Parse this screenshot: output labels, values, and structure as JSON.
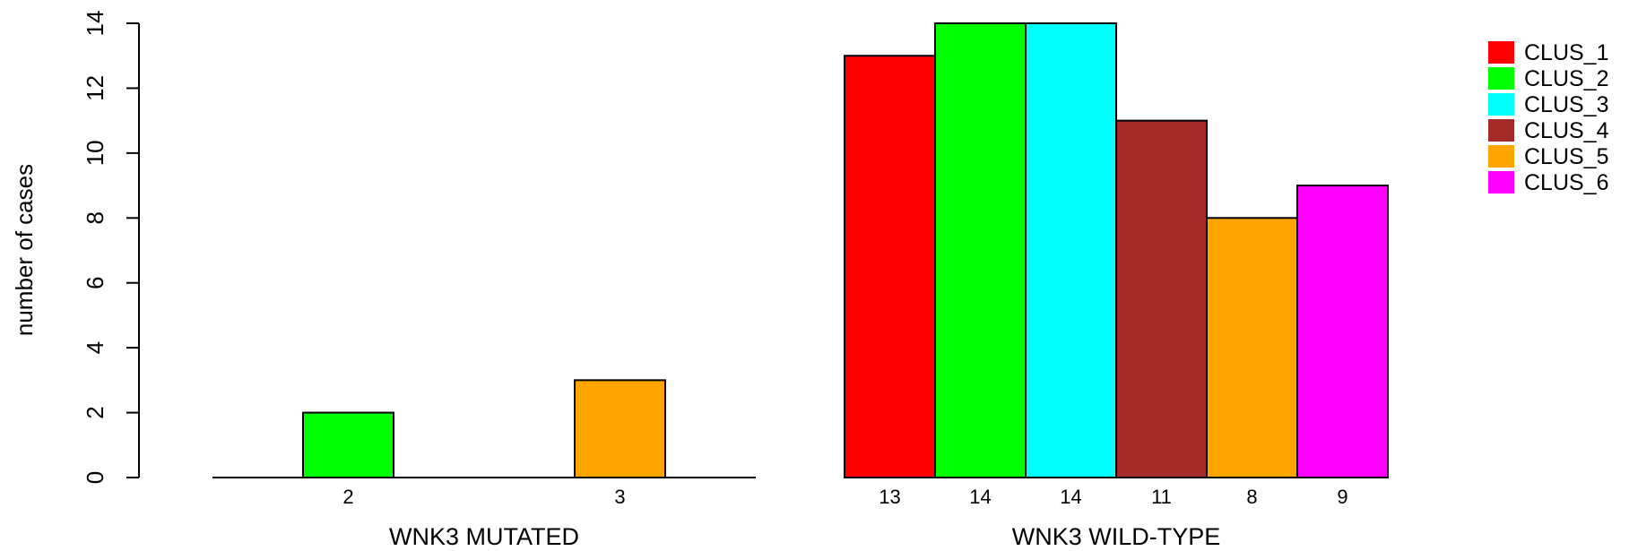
{
  "chart_data": {
    "type": "bar",
    "ylabel": "number of cases",
    "ylim": [
      0,
      14
    ],
    "yticks": [
      0,
      2,
      4,
      6,
      8,
      10,
      12,
      14
    ],
    "grid": false,
    "legend_position": "top-right",
    "series": [
      {
        "name": "CLUS_1",
        "color": "#ff0000"
      },
      {
        "name": "CLUS_2",
        "color": "#00ff00"
      },
      {
        "name": "CLUS_3",
        "color": "#00ffff"
      },
      {
        "name": "CLUS_4",
        "color": "#a52a2a"
      },
      {
        "name": "CLUS_5",
        "color": "#ffa500"
      },
      {
        "name": "CLUS_6",
        "color": "#ff00ff"
      }
    ],
    "groups": [
      {
        "name": "WNK3 MUTATED",
        "values": [
          0,
          2,
          0,
          0,
          3,
          0
        ],
        "value_labels": [
          "",
          "2",
          "",
          "",
          "3",
          ""
        ]
      },
      {
        "name": "WNK3 WILD-TYPE",
        "values": [
          13,
          14,
          14,
          11,
          8,
          9
        ],
        "value_labels": [
          "13",
          "14",
          "14",
          "11",
          "8",
          "9"
        ]
      }
    ]
  }
}
